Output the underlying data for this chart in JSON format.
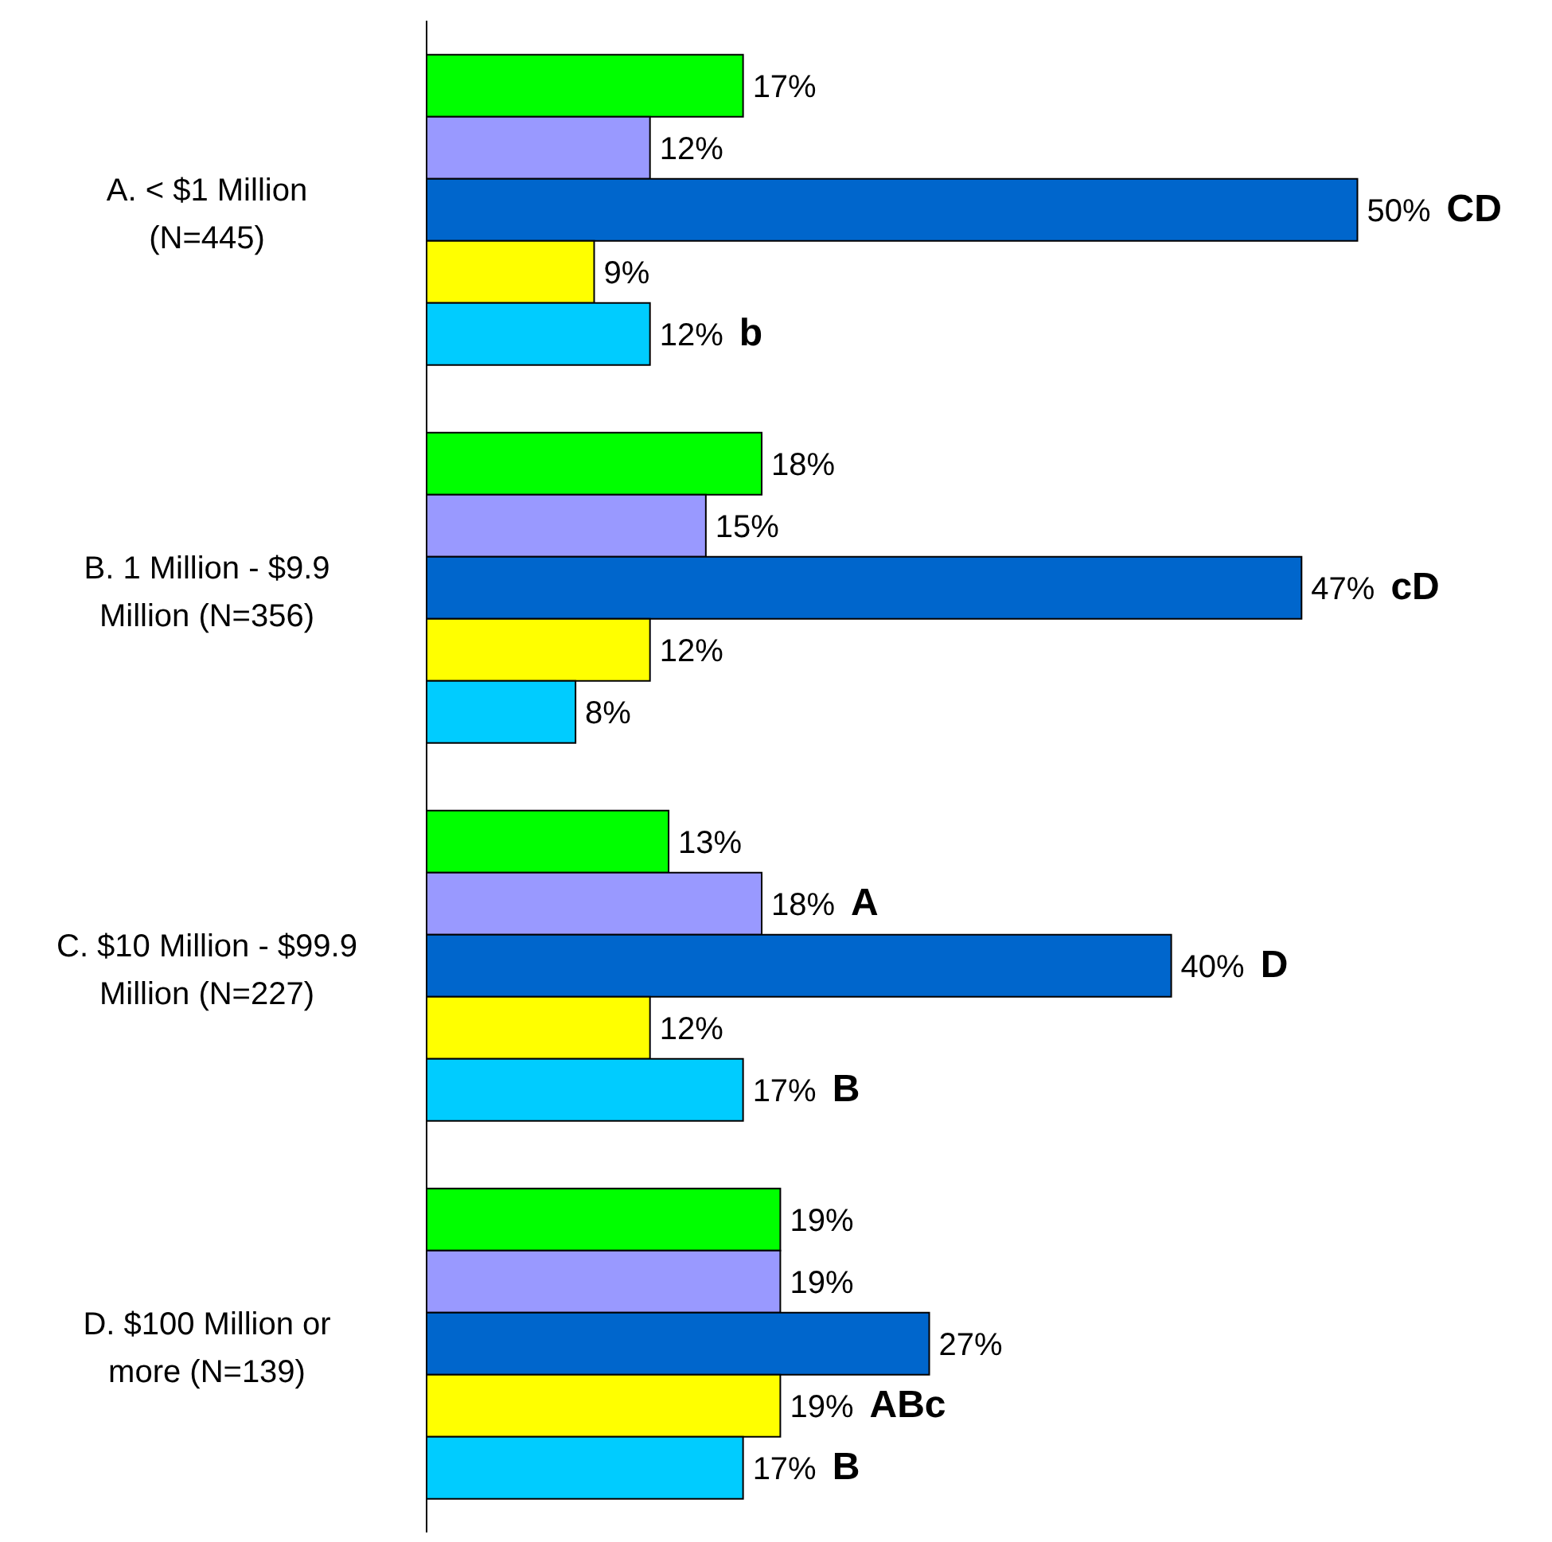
{
  "chart_data": {
    "type": "bar",
    "orientation": "horizontal",
    "categories": [
      "A. < $1 Million (N=445)",
      "B. 1 Million - $9.9 Million (N=356)",
      "C. $10 Million - $99.9 Million (N=227)",
      "D. $100 Million or more (N=139)"
    ],
    "series": [
      {
        "color": "#00ff00",
        "values": [
          17,
          18,
          13,
          19
        ],
        "value_labels": [
          "17%",
          "18%",
          "13%",
          "19%"
        ]
      },
      {
        "color": "#9999ff",
        "values": [
          12,
          15,
          18,
          19
        ],
        "value_labels": [
          "12%",
          "15%",
          "18% A",
          "19%"
        ]
      },
      {
        "color": "#0066cc",
        "values": [
          50,
          47,
          40,
          27
        ],
        "value_labels": [
          "50% CD",
          "47% cD",
          "40% D",
          "27%"
        ]
      },
      {
        "color": "#ffff00",
        "values": [
          9,
          12,
          12,
          19
        ],
        "value_labels": [
          "9%",
          "12%",
          "12%",
          "19% ABc"
        ]
      },
      {
        "color": "#00ccff",
        "values": [
          12,
          8,
          17,
          17
        ],
        "value_labels": [
          "12% b",
          "8%",
          "17% B",
          "17% B"
        ]
      }
    ],
    "grid": false,
    "legend": false
  }
}
